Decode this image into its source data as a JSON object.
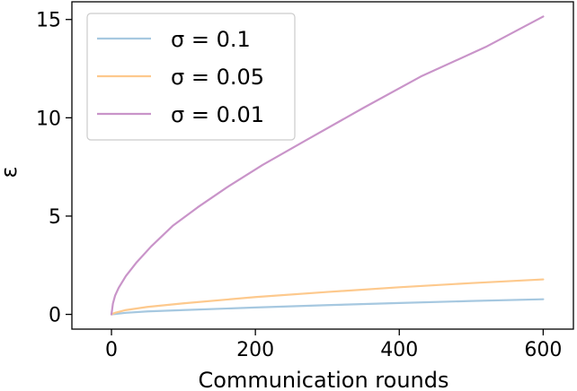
{
  "chart_data": {
    "type": "line",
    "xlabel": "Communication rounds",
    "ylabel": "ε",
    "xlim": [
      -55,
      642
    ],
    "ylim": [
      -0.75,
      15.9
    ],
    "x_ticks": [
      0,
      200,
      400,
      600
    ],
    "y_ticks": [
      0,
      5,
      10,
      15
    ],
    "grid": false,
    "legend": "upper left",
    "series": [
      {
        "name": "σ = 0.1",
        "color": "#a6c8e0",
        "x": [
          0,
          5,
          20,
          50,
          100,
          200,
          300,
          400,
          500,
          600
        ],
        "values": [
          0,
          0.02,
          0.08,
          0.15,
          0.22,
          0.35,
          0.47,
          0.58,
          0.68,
          0.77
        ]
      },
      {
        "name": "σ = 0.05",
        "color": "#fdc98d",
        "x": [
          0,
          5,
          20,
          50,
          100,
          200,
          300,
          400,
          500,
          600
        ],
        "values": [
          0,
          0.08,
          0.22,
          0.38,
          0.56,
          0.88,
          1.14,
          1.38,
          1.59,
          1.78
        ]
      },
      {
        "name": "σ = 0.01",
        "color": "#c994c9",
        "x": [
          0,
          2,
          5,
          10,
          20,
          35,
          55,
          85,
          120,
          160,
          210,
          270,
          350,
          430,
          520,
          600
        ],
        "values": [
          0,
          0.55,
          0.95,
          1.35,
          1.95,
          2.65,
          3.45,
          4.5,
          5.45,
          6.45,
          7.6,
          8.85,
          10.5,
          12.1,
          13.6,
          15.15
        ]
      }
    ]
  }
}
